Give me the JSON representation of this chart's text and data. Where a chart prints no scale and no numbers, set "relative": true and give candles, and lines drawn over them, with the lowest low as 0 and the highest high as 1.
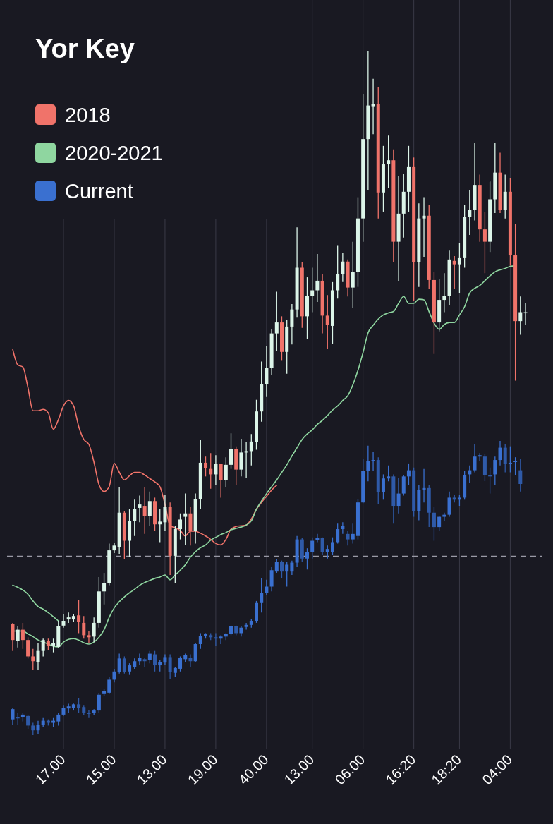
{
  "chart_data": {
    "type": "candlestick",
    "relative": true,
    "legend_title": "Yor Key",
    "legend": "top left",
    "grid": "x",
    "categories": [
      null,
      null,
      null,
      null,
      null,
      null,
      null,
      null,
      null,
      null,
      "17.00",
      null,
      null,
      null,
      null,
      null,
      null,
      null,
      null,
      null,
      "15.00",
      null,
      null,
      null,
      null,
      null,
      null,
      null,
      null,
      null,
      "13.00",
      null,
      null,
      null,
      null,
      null,
      null,
      null,
      null,
      null,
      "19.00",
      null,
      null,
      null,
      null,
      null,
      null,
      null,
      null,
      null,
      "40.00",
      null,
      null,
      null,
      null,
      null,
      null,
      null,
      null,
      "13.00",
      null,
      null,
      null,
      null,
      null,
      null,
      null,
      null,
      null,
      "06.00",
      null,
      null,
      null,
      null,
      null,
      null,
      null,
      null,
      null,
      "16:20",
      null,
      null,
      null,
      null,
      null,
      null,
      null,
      null,
      "18:20",
      null,
      null,
      null,
      null,
      null,
      null,
      null,
      null,
      null,
      "04:00",
      null,
      null,
      null
    ],
    "ref_lines": [
      {
        "axis": "y",
        "value": 0.261,
        "color": "#9a9aa6",
        "line_style": "dashed"
      }
    ],
    "series": [
      {
        "type": "line",
        "name": "2018",
        "color": "#f0736a",
        "values": [
          0.564,
          0.541,
          0.538,
          0.508,
          0.474,
          0.474,
          0.476,
          0.471,
          0.447,
          0.461,
          0.481,
          0.489,
          0.481,
          0.451,
          0.432,
          0.425,
          0.399,
          0.366,
          0.356,
          0.363,
          0.397,
          0.384,
          0.373,
          0.379,
          0.384,
          0.384,
          0.38,
          0.375,
          0.37,
          0.363,
          0.337,
          0.306,
          0.303,
          0.299,
          0.291,
          0.298,
          0.298,
          0.295,
          0.291,
          0.286,
          0.28,
          0.278,
          0.286,
          0.301,
          0.305,
          0.306,
          0.307,
          0.316,
          0.33,
          0.34,
          0.349,
          0.358,
          0.365,
          null,
          null,
          null,
          null,
          null,
          null,
          null,
          null,
          null,
          null,
          null,
          null,
          null,
          null,
          null,
          null,
          null,
          null,
          null,
          null,
          null,
          null,
          null,
          null,
          null,
          null,
          null,
          null,
          null,
          null,
          null,
          null,
          null,
          null,
          null,
          null,
          null,
          null,
          null,
          null,
          null,
          null,
          null,
          null,
          null,
          null,
          null,
          null,
          null
        ]
      },
      {
        "type": "line",
        "name": "2020-2021",
        "color": "#8fd6a0",
        "values": [
          0.152,
          0.152,
          0.152,
          0.148,
          0.144,
          0.139,
          0.136,
          0.133,
          0.13,
          0.129,
          0.136,
          0.14,
          0.141,
          0.139,
          0.135,
          0.133,
          0.136,
          0.143,
          0.154,
          0.172,
          0.186,
          0.195,
          0.202,
          0.208,
          0.213,
          0.219,
          0.223,
          0.226,
          0.229,
          0.231,
          0.234,
          0.227,
          0.234,
          0.241,
          0.249,
          0.26,
          0.268,
          0.274,
          0.278,
          0.285,
          0.289,
          0.293,
          0.296,
          0.3,
          0.302,
          0.304,
          0.307,
          0.313,
          0.33,
          0.342,
          0.353,
          0.363,
          0.373,
          0.384,
          0.395,
          0.408,
          0.42,
          0.432,
          0.44,
          0.446,
          0.454,
          0.46,
          0.467,
          0.475,
          0.481,
          0.489,
          0.496,
          0.512,
          0.533,
          0.559,
          0.588,
          0.599,
          0.608,
          0.614,
          0.617,
          0.619,
          0.631,
          0.641,
          0.631,
          0.631,
          0.637,
          0.636,
          0.619,
          0.602,
          0.593,
          0.6,
          0.603,
          0.603,
          0.614,
          0.626,
          0.646,
          0.653,
          0.657,
          0.664,
          0.671,
          0.677,
          0.68,
          0.682,
          0.685,
          0.686,
          null,
          null
        ]
      },
      {
        "type": "candlestick",
        "name": "Current",
        "color": "#3a70d0",
        "colors": [
          "#3a70d0",
          "#2f5aa8",
          "#3a70d0",
          "#2f5aa8",
          "#2f5aa8",
          "#3a70d0",
          "#3a70d0",
          "#2f5aa8",
          "#3a70d0",
          "#3a70d0",
          "#3a70d0",
          "#3a70d0",
          "#3a70d0",
          "#2f5aa8",
          "#2f5aa8",
          "#2f5aa8",
          "#3a70d0",
          "#3a70d0",
          "#3a70d0",
          "#3a70d0",
          "#3a70d0",
          "#3a70d0",
          "#2f5aa8",
          "#3a70d0",
          "#3a70d0",
          "#3a70d0",
          "#2f5aa8",
          "#3a70d0",
          "#2f5aa8",
          "#3a70d0",
          "#3a70d0",
          "#2f5aa8",
          "#3a70d0",
          "#3a70d0",
          "#3a70d0",
          "#2f5aa8",
          "#3a70d0",
          "#3a70d0",
          "#3a70d0",
          "#2f5aa8",
          "#2f5aa8",
          "#3a70d0",
          "#3a70d0",
          "#3a70d0",
          "#2f5aa8",
          "#3a70d0",
          "#3a70d0",
          "#3a70d0",
          "#3a70d0",
          "#3a70d0",
          "#3a70d0",
          "#3a70d0",
          "#3a70d0",
          "#2f5aa8",
          "#3a70d0",
          "#3a70d0",
          "#3a70d0",
          "#2f5aa8",
          "#3a70d0",
          "#3a70d0",
          "#3a70d0",
          "#2f5aa8",
          "#3a70d0",
          "#3a70d0",
          "#3a70d0",
          "#3a70d0",
          "#2f5aa8",
          "#3a70d0",
          "#3a70d0",
          "#3a70d0",
          "#3a70d0",
          "#3a70d0",
          "#2f5aa8",
          "#3a70d0",
          "#3a70d0",
          "#2f5aa8",
          "#3a70d0",
          "#3a70d0",
          "#3a70d0",
          "#2f5aa8",
          "#3a70d0",
          "#3a70d0",
          "#2f5aa8",
          "#2f5aa8",
          "#3a70d0",
          "#3a70d0",
          "#3a70d0",
          "#2f5aa8",
          "#3a70d0",
          "#3a70d0",
          "#3a70d0",
          "#3a70d0",
          "#3a70d0",
          "#2f5aa8",
          "#2f5aa8",
          "#3a70d0",
          "#3a70d0",
          "#2f5aa8",
          "#3a70d0",
          "#3a70d0",
          "#2f5aa8",
          null
        ],
        "ohlc": [
          [
            0.023,
            0.04,
            0.015,
            0.038
          ],
          [
            0.026,
            0.033,
            0.015,
            0.025
          ],
          [
            0.026,
            0.033,
            0.02,
            0.03
          ],
          [
            0.028,
            0.03,
            0.009,
            0.014
          ],
          [
            0.014,
            0.018,
            0.0,
            0.007
          ],
          [
            0.007,
            0.021,
            0.002,
            0.015
          ],
          [
            0.015,
            0.025,
            0.012,
            0.021
          ],
          [
            0.021,
            0.023,
            0.014,
            0.018
          ],
          [
            0.018,
            0.025,
            0.012,
            0.021
          ],
          [
            0.02,
            0.033,
            0.014,
            0.03
          ],
          [
            0.03,
            0.043,
            0.028,
            0.04
          ],
          [
            0.039,
            0.046,
            0.033,
            0.042
          ],
          [
            0.04,
            0.046,
            0.036,
            0.045
          ],
          [
            0.045,
            0.054,
            0.033,
            0.04
          ],
          [
            0.041,
            0.043,
            0.03,
            0.033
          ],
          [
            0.033,
            0.036,
            0.025,
            0.031
          ],
          [
            0.032,
            0.038,
            0.03,
            0.036
          ],
          [
            0.036,
            0.061,
            0.033,
            0.059
          ],
          [
            0.06,
            0.067,
            0.057,
            0.064
          ],
          [
            0.062,
            0.085,
            0.06,
            0.081
          ],
          [
            0.081,
            0.097,
            0.077,
            0.093
          ],
          [
            0.092,
            0.119,
            0.09,
            0.112
          ],
          [
            0.112,
            0.115,
            0.09,
            0.092
          ],
          [
            0.093,
            0.105,
            0.088,
            0.102
          ],
          [
            0.1,
            0.112,
            0.097,
            0.108
          ],
          [
            0.108,
            0.119,
            0.103,
            0.113
          ],
          [
            0.111,
            0.113,
            0.1,
            0.108
          ],
          [
            0.11,
            0.123,
            0.105,
            0.119
          ],
          [
            0.118,
            0.123,
            0.093,
            0.102
          ],
          [
            0.102,
            0.11,
            0.093,
            0.107
          ],
          [
            0.106,
            0.118,
            0.103,
            0.114
          ],
          [
            0.114,
            0.118,
            0.082,
            0.092
          ],
          [
            0.091,
            0.1,
            0.085,
            0.098
          ],
          [
            0.097,
            0.115,
            0.093,
            0.113
          ],
          [
            0.111,
            0.119,
            0.107,
            0.117
          ],
          [
            0.113,
            0.118,
            0.1,
            0.108
          ],
          [
            0.108,
            0.134,
            0.107,
            0.133
          ],
          [
            0.133,
            0.149,
            0.126,
            0.145
          ],
          [
            0.145,
            0.149,
            0.141,
            0.148
          ],
          [
            0.146,
            0.149,
            0.139,
            0.143
          ],
          [
            0.143,
            0.149,
            0.131,
            0.141
          ],
          [
            0.141,
            0.146,
            0.133,
            0.144
          ],
          [
            0.144,
            0.149,
            0.139,
            0.148
          ],
          [
            0.148,
            0.16,
            0.146,
            0.159
          ],
          [
            0.159,
            0.16,
            0.146,
            0.149
          ],
          [
            0.149,
            0.159,
            0.144,
            0.157
          ],
          [
            0.158,
            0.164,
            0.154,
            0.161
          ],
          [
            0.161,
            0.169,
            0.157,
            0.167
          ],
          [
            0.167,
            0.196,
            0.164,
            0.193
          ],
          [
            0.193,
            0.229,
            0.179,
            0.208
          ],
          [
            0.208,
            0.227,
            0.205,
            0.217
          ],
          [
            0.217,
            0.246,
            0.21,
            0.241
          ],
          [
            0.239,
            0.257,
            0.237,
            0.253
          ],
          [
            0.253,
            0.255,
            0.229,
            0.239
          ],
          [
            0.239,
            0.253,
            0.217,
            0.249
          ],
          [
            0.239,
            0.255,
            0.234,
            0.252
          ],
          [
            0.252,
            0.291,
            0.246,
            0.286
          ],
          [
            0.286,
            0.288,
            0.253,
            0.258
          ],
          [
            0.258,
            0.273,
            0.242,
            0.267
          ],
          [
            0.267,
            0.289,
            0.258,
            0.284
          ],
          [
            0.285,
            0.294,
            0.282,
            0.288
          ],
          [
            0.288,
            0.289,
            0.263,
            0.267
          ],
          [
            0.267,
            0.277,
            0.258,
            0.272
          ],
          [
            0.268,
            0.289,
            0.263,
            0.282
          ],
          [
            0.282,
            0.309,
            0.28,
            0.301
          ],
          [
            0.301,
            0.311,
            0.294,
            0.306
          ],
          [
            0.294,
            0.299,
            0.277,
            0.286
          ],
          [
            0.286,
            0.309,
            0.28,
            0.294
          ],
          [
            0.291,
            0.345,
            0.286,
            0.34
          ],
          [
            0.34,
            0.404,
            0.339,
            0.386
          ],
          [
            0.386,
            0.423,
            0.371,
            0.401
          ],
          [
            0.401,
            0.414,
            0.386,
            0.402
          ],
          [
            0.402,
            0.406,
            0.337,
            0.355
          ],
          [
            0.355,
            0.381,
            0.344,
            0.375
          ],
          [
            0.375,
            0.394,
            0.371,
            0.378
          ],
          [
            0.378,
            0.381,
            0.309,
            0.335
          ],
          [
            0.335,
            0.376,
            0.324,
            0.353
          ],
          [
            0.353,
            0.38,
            0.35,
            0.378
          ],
          [
            0.378,
            0.397,
            0.366,
            0.387
          ],
          [
            0.387,
            0.391,
            0.319,
            0.327
          ],
          [
            0.327,
            0.365,
            0.314,
            0.358
          ],
          [
            0.358,
            0.389,
            0.34,
            0.361
          ],
          [
            0.361,
            0.365,
            0.304,
            0.325
          ],
          [
            0.325,
            0.334,
            0.284,
            0.304
          ],
          [
            0.304,
            0.32,
            0.299,
            0.319
          ],
          [
            0.319,
            0.325,
            0.313,
            0.322
          ],
          [
            0.322,
            0.356,
            0.319,
            0.347
          ],
          [
            0.347,
            0.351,
            0.34,
            0.344
          ],
          [
            0.344,
            0.351,
            0.335,
            0.347
          ],
          [
            0.347,
            0.386,
            0.344,
            0.38
          ],
          [
            0.381,
            0.394,
            0.368,
            0.387
          ],
          [
            0.387,
            0.425,
            0.384,
            0.407
          ],
          [
            0.407,
            0.412,
            0.401,
            0.409
          ],
          [
            0.407,
            0.411,
            0.371,
            0.38
          ],
          [
            0.38,
            0.391,
            0.353,
            0.378
          ],
          [
            0.381,
            0.407,
            0.366,
            0.402
          ],
          [
            0.402,
            0.43,
            0.394,
            0.42
          ],
          [
            0.42,
            0.425,
            0.384,
            0.396
          ],
          [
            0.396,
            0.422,
            0.384,
            0.398
          ],
          [
            0.399,
            0.406,
            0.38,
            0.401
          ],
          [
            0.387,
            0.404,
            0.356,
            0.367
          ],
          null
        ]
      },
      {
        "type": "candlestick",
        "colors": [
          "#f0736a",
          "#dcf5e9",
          "#f0736a",
          "#f0736a",
          "#f0736a",
          "#dcf5e9",
          "#dcf5e9",
          "#f0736a",
          "#dcf5e9",
          "#dcf5e9",
          "#dcf5e9",
          "#dcf5e9",
          "#dcf5e9",
          "#f0736a",
          "#f0736a",
          "#f0736a",
          "#dcf5e9",
          "#dcf5e9",
          "#dcf5e9",
          "#dcf5e9",
          "#dcf5e9",
          "#dcf5e9",
          "#f0736a",
          "#dcf5e9",
          "#dcf5e9",
          "#dcf5e9",
          "#f0736a",
          "#dcf5e9",
          "#f0736a",
          "#dcf5e9",
          "#dcf5e9",
          "#f0736a",
          "#dcf5e9",
          "#dcf5e9",
          "#dcf5e9",
          "#f0736a",
          "#dcf5e9",
          "#dcf5e9",
          "#f0736a",
          "#f0736a",
          "#dcf5e9",
          "#f0736a",
          "#dcf5e9",
          "#dcf5e9",
          "#f0736a",
          "#dcf5e9",
          "#dcf5e9",
          "#dcf5e9",
          "#dcf5e9",
          "#dcf5e9",
          "#dcf5e9",
          "#dcf5e9",
          "#dcf5e9",
          "#f0736a",
          "#dcf5e9",
          "#dcf5e9",
          "#dcf5e9",
          "#f0736a",
          "#dcf5e9",
          "#dcf5e9",
          "#dcf5e9",
          "#f0736a",
          "#f0736a",
          "#dcf5e9",
          "#dcf5e9",
          "#dcf5e9",
          "#f0736a",
          "#dcf5e9",
          "#dcf5e9",
          "#dcf5e9",
          "#dcf5e9",
          "#dcf5e9",
          "#f0736a",
          "#dcf5e9",
          "#dcf5e9",
          "#f0736a",
          "#dcf5e9",
          "#dcf5e9",
          "#dcf5e9",
          "#f0736a",
          "#dcf5e9",
          "#dcf5e9",
          "#f0736a",
          "#f0736a",
          "#dcf5e9",
          "#dcf5e9",
          "#dcf5e9",
          "#f0736a",
          "#dcf5e9",
          "#dcf5e9",
          "#dcf5e9",
          "#dcf5e9",
          "#f0736a",
          "#f0736a",
          "#dcf5e9",
          "#dcf5e9",
          "#f0736a",
          "#dcf5e9",
          "#f0736a",
          "#f0736a",
          "#dcf5e9",
          "#dcf5e9"
        ],
        "ohlc": [
          [
            0.162,
            0.164,
            0.123,
            0.139
          ],
          [
            0.138,
            0.159,
            0.128,
            0.154
          ],
          [
            0.154,
            0.164,
            0.126,
            0.139
          ],
          [
            0.139,
            0.143,
            0.112,
            0.115
          ],
          [
            0.115,
            0.126,
            0.095,
            0.108
          ],
          [
            0.107,
            0.134,
            0.095,
            0.123
          ],
          [
            0.123,
            0.141,
            0.115,
            0.139
          ],
          [
            0.138,
            0.141,
            0.124,
            0.131
          ],
          [
            0.131,
            0.141,
            0.121,
            0.134
          ],
          [
            0.129,
            0.167,
            0.128,
            0.159
          ],
          [
            0.16,
            0.177,
            0.157,
            0.167
          ],
          [
            0.169,
            0.179,
            0.164,
            0.172
          ],
          [
            0.169,
            0.177,
            0.165,
            0.174
          ],
          [
            0.175,
            0.197,
            0.149,
            0.165
          ],
          [
            0.164,
            0.174,
            0.141,
            0.146
          ],
          [
            0.146,
            0.152,
            0.134,
            0.143
          ],
          [
            0.144,
            0.172,
            0.136,
            0.164
          ],
          [
            0.164,
            0.231,
            0.157,
            0.21
          ],
          [
            0.21,
            0.237,
            0.191,
            0.222
          ],
          [
            0.222,
            0.28,
            0.219,
            0.27
          ],
          [
            0.27,
            0.281,
            0.266,
            0.277
          ],
          [
            0.275,
            0.363,
            0.265,
            0.325
          ],
          [
            0.325,
            0.327,
            0.257,
            0.284
          ],
          [
            0.284,
            0.33,
            0.26,
            0.313
          ],
          [
            0.313,
            0.344,
            0.291,
            0.33
          ],
          [
            0.332,
            0.35,
            0.311,
            0.337
          ],
          [
            0.335,
            0.363,
            0.294,
            0.32
          ],
          [
            0.32,
            0.356,
            0.306,
            0.342
          ],
          [
            0.342,
            0.347,
            0.298,
            0.308
          ],
          [
            0.308,
            0.33,
            0.282,
            0.312
          ],
          [
            0.311,
            0.351,
            0.299,
            0.334
          ],
          [
            0.334,
            0.34,
            0.234,
            0.262
          ],
          [
            0.262,
            0.306,
            0.222,
            0.301
          ],
          [
            0.301,
            0.324,
            0.286,
            0.315
          ],
          [
            0.319,
            0.353,
            0.278,
            0.324
          ],
          [
            0.324,
            0.334,
            0.277,
            0.298
          ],
          [
            0.298,
            0.353,
            0.28,
            0.345
          ],
          [
            0.345,
            0.432,
            0.33,
            0.398
          ],
          [
            0.398,
            0.407,
            0.378,
            0.39
          ],
          [
            0.389,
            0.412,
            0.36,
            0.381
          ],
          [
            0.381,
            0.409,
            0.366,
            0.396
          ],
          [
            0.396,
            0.397,
            0.347,
            0.373
          ],
          [
            0.373,
            0.406,
            0.363,
            0.395
          ],
          [
            0.395,
            0.441,
            0.389,
            0.418
          ],
          [
            0.418,
            0.422,
            0.366,
            0.388
          ],
          [
            0.388,
            0.433,
            0.378,
            0.413
          ],
          [
            0.413,
            0.428,
            0.376,
            0.415
          ],
          [
            0.415,
            0.44,
            0.394,
            0.429
          ],
          [
            0.428,
            0.49,
            0.417,
            0.473
          ],
          [
            0.473,
            0.546,
            0.458,
            0.513
          ],
          [
            0.513,
            0.569,
            0.494,
            0.537
          ],
          [
            0.537,
            0.593,
            0.526,
            0.587
          ],
          [
            0.587,
            0.648,
            0.561,
            0.603
          ],
          [
            0.603,
            0.612,
            0.547,
            0.56
          ],
          [
            0.56,
            0.607,
            0.528,
            0.597
          ],
          [
            0.597,
            0.63,
            0.571,
            0.622
          ],
          [
            0.622,
            0.742,
            0.61,
            0.683
          ],
          [
            0.683,
            0.691,
            0.595,
            0.612
          ],
          [
            0.612,
            0.669,
            0.579,
            0.642
          ],
          [
            0.642,
            0.683,
            0.618,
            0.65
          ],
          [
            0.65,
            0.703,
            0.633,
            0.664
          ],
          [
            0.664,
            0.674,
            0.587,
            0.613
          ],
          [
            0.613,
            0.643,
            0.564,
            0.599
          ],
          [
            0.598,
            0.662,
            0.572,
            0.65
          ],
          [
            0.65,
            0.716,
            0.638,
            0.674
          ],
          [
            0.674,
            0.705,
            0.662,
            0.692
          ],
          [
            0.692,
            0.695,
            0.641,
            0.654
          ],
          [
            0.654,
            0.721,
            0.624,
            0.677
          ],
          [
            0.677,
            0.786,
            0.655,
            0.755
          ],
          [
            0.755,
            0.937,
            0.721,
            0.871
          ],
          [
            0.871,
            1.0,
            0.796,
            0.92
          ],
          [
            0.919,
            0.959,
            0.878,
            0.922
          ],
          [
            0.922,
            0.947,
            0.755,
            0.793
          ],
          [
            0.793,
            0.861,
            0.765,
            0.834
          ],
          [
            0.834,
            0.876,
            0.799,
            0.84
          ],
          [
            0.84,
            0.856,
            0.691,
            0.721
          ],
          [
            0.721,
            0.817,
            0.664,
            0.762
          ],
          [
            0.762,
            0.82,
            0.727,
            0.794
          ],
          [
            0.794,
            0.861,
            0.765,
            0.83
          ],
          [
            0.83,
            0.844,
            0.634,
            0.691
          ],
          [
            0.691,
            0.777,
            0.655,
            0.755
          ],
          [
            0.755,
            0.786,
            0.698,
            0.759
          ],
          [
            0.759,
            0.775,
            0.652,
            0.665
          ],
          [
            0.665,
            0.677,
            0.557,
            0.603
          ],
          [
            0.603,
            0.667,
            0.59,
            0.636
          ],
          [
            0.636,
            0.675,
            0.618,
            0.642
          ],
          [
            0.642,
            0.708,
            0.628,
            0.695
          ],
          [
            0.693,
            0.7,
            0.652,
            0.688
          ],
          [
            0.688,
            0.719,
            0.646,
            0.697
          ],
          [
            0.697,
            0.775,
            0.683,
            0.757
          ],
          [
            0.757,
            0.796,
            0.731,
            0.768
          ],
          [
            0.768,
            0.866,
            0.752,
            0.804
          ],
          [
            0.804,
            0.819,
            0.721,
            0.739
          ],
          [
            0.739,
            0.765,
            0.675,
            0.721
          ],
          [
            0.721,
            0.809,
            0.706,
            0.783
          ],
          [
            0.783,
            0.866,
            0.763,
            0.822
          ],
          [
            0.822,
            0.851,
            0.763,
            0.768
          ],
          [
            0.768,
            0.819,
            0.755,
            0.794
          ],
          [
            0.794,
            0.814,
            0.686,
            0.701
          ],
          [
            0.701,
            0.747,
            0.518,
            0.605
          ],
          [
            0.605,
            0.641,
            0.585,
            0.618
          ],
          [
            0.617,
            0.631,
            0.6,
            0.618
          ]
        ]
      },
      {
        "type": "line",
        "color": "#8fd6a0",
        "values": [
          0.219,
          0.216,
          0.212,
          0.206,
          0.196,
          0.188,
          0.184,
          0.179,
          0.173,
          0.167,
          null,
          null,
          null,
          null,
          null,
          null,
          null,
          null,
          null,
          null,
          null,
          null,
          null,
          null,
          null,
          null,
          null,
          null,
          null,
          null,
          null,
          null,
          null,
          null,
          null,
          null,
          null,
          null,
          null,
          null,
          null,
          null,
          null,
          null,
          null,
          null,
          null,
          null,
          null,
          null,
          null,
          null,
          null,
          null,
          null,
          null,
          null,
          null,
          null,
          null,
          null,
          null,
          null,
          null,
          null,
          null,
          null,
          null,
          null,
          null,
          null,
          null,
          null,
          null,
          null,
          null,
          null,
          null,
          null,
          null,
          null,
          null,
          null,
          null,
          null,
          null,
          null,
          null,
          null,
          null,
          null,
          null,
          null,
          null,
          null,
          null,
          null,
          null,
          null,
          null,
          null,
          null
        ]
      }
    ]
  }
}
